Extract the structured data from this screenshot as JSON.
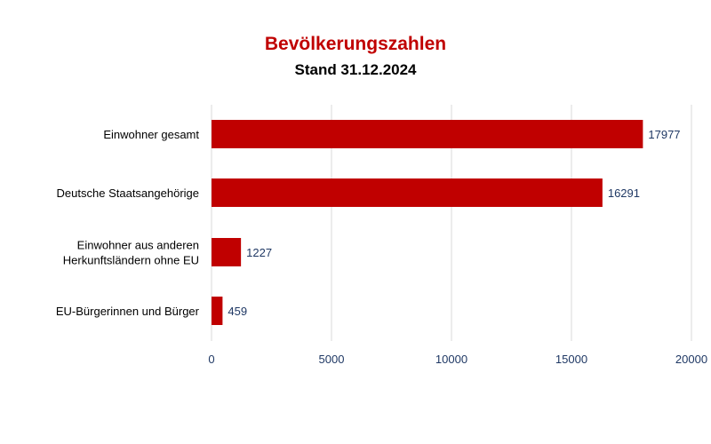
{
  "chart_data": {
    "type": "bar",
    "orientation": "horizontal",
    "title": "Bevölkerungszahlen",
    "subtitle": "Stand 31.12.2024",
    "categories": [
      [
        "Einwohner gesamt"
      ],
      [
        "Deutsche Staatsangehörige"
      ],
      [
        "Einwohner aus anderen",
        "Herkunftsländern ohne EU"
      ],
      [
        "EU-Bürgerinnen und Bürger"
      ]
    ],
    "values": [
      17977,
      16291,
      1227,
      459
    ],
    "xlim": [
      0,
      20000
    ],
    "xticks": [
      0,
      5000,
      10000,
      15000,
      20000
    ],
    "grid": "vertical",
    "legend": "none",
    "bar_color": "#c00000",
    "title_color": "#c00000",
    "tick_color": "#1f3864"
  }
}
